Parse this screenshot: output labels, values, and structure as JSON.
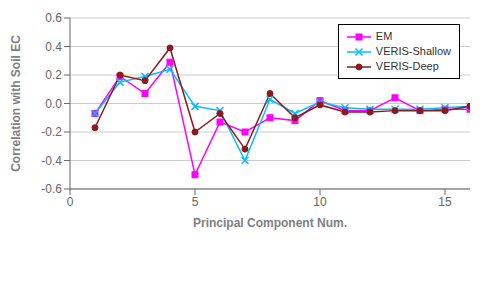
{
  "chart_data": {
    "type": "line",
    "x": [
      1,
      2,
      3,
      4,
      5,
      6,
      7,
      8,
      9,
      10,
      11,
      12,
      13,
      14,
      15,
      16
    ],
    "series": [
      {
        "name": "EM",
        "color": "#ff00ff",
        "marker": "square",
        "values": [
          -0.07,
          0.19,
          0.07,
          0.29,
          -0.5,
          -0.13,
          -0.2,
          -0.1,
          -0.12,
          0.02,
          -0.05,
          -0.05,
          0.04,
          -0.05,
          -0.04,
          -0.04
        ]
      },
      {
        "name": "VERIS-Shallow",
        "color": "#00bfff",
        "marker": "x",
        "values": [
          -0.07,
          0.15,
          0.19,
          0.24,
          -0.02,
          -0.05,
          -0.4,
          0.03,
          -0.07,
          0.01,
          -0.03,
          -0.04,
          -0.04,
          -0.04,
          -0.03,
          -0.02
        ]
      },
      {
        "name": "VERIS-Deep",
        "color": "#8b1a1a",
        "marker": "circle",
        "values": [
          -0.17,
          0.2,
          0.16,
          0.39,
          -0.2,
          -0.07,
          -0.32,
          0.07,
          -0.1,
          -0.01,
          -0.06,
          -0.06,
          -0.05,
          -0.05,
          -0.05,
          -0.02
        ]
      }
    ],
    "x_label": "Principal Component Num.",
    "y_label": "Correlation with Soil EC",
    "xlim": [
      0,
      16
    ],
    "xticks": [
      0,
      5,
      10,
      15
    ],
    "ylim": [
      -0.6,
      0.6
    ],
    "yticks": [
      -0.6,
      -0.4,
      -0.2,
      {
        "value": 0.0,
        "label": "0.0"
      },
      0.2,
      0.4,
      0.6
    ],
    "grid": "y",
    "legend": "upper right"
  }
}
